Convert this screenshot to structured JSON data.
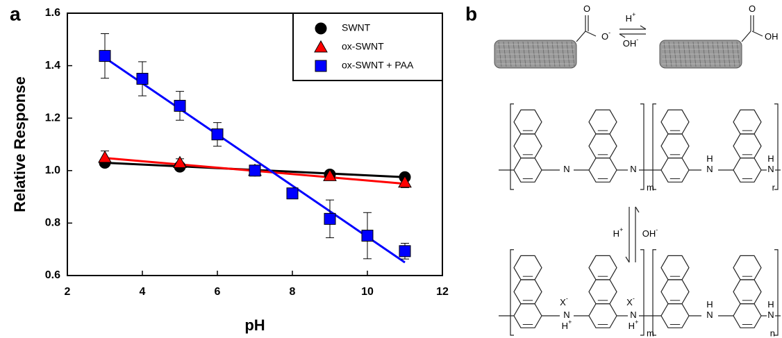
{
  "chart_data": {
    "type": "scatter",
    "panel_label": "a",
    "x_label": "pH",
    "y_label": "Relative Response",
    "xlim": [
      2,
      12
    ],
    "xticks": [
      2,
      4,
      6,
      8,
      10,
      12
    ],
    "ylim": [
      0.6,
      1.6
    ],
    "yticks": [
      0.6,
      0.8,
      {
        "value": 1.0,
        "label": "1.0"
      },
      1.2,
      1.4,
      1.6
    ],
    "legend": "upper right",
    "series": [
      {
        "name": "SWNT",
        "color": "#000000",
        "marker": "circle",
        "x": [
          3,
          5,
          7,
          9,
          11
        ],
        "values": [
          1.03,
          1.015,
          1.0,
          0.985,
          0.975
        ],
        "fit": {
          "x": [
            3,
            11
          ],
          "y": [
            1.03,
            0.975
          ]
        }
      },
      {
        "name": "ox-SWNT",
        "color": "#ff0000",
        "marker": "triangle",
        "x": [
          3,
          5,
          7,
          9,
          11
        ],
        "values": [
          1.05,
          1.03,
          1.0,
          0.98,
          0.955
        ],
        "errors": [
          0.025,
          0.015,
          0.01,
          0.015,
          0.02
        ],
        "fit": {
          "x": [
            3,
            11
          ],
          "y": [
            1.048,
            0.95
          ]
        }
      },
      {
        "name": "ox-SWNT + PAA",
        "color": "#0000ff",
        "marker": "square",
        "x": [
          3,
          4,
          5,
          6,
          7,
          8,
          9,
          10,
          11
        ],
        "values": [
          1.437,
          1.35,
          1.247,
          1.138,
          1.0,
          0.913,
          0.816,
          0.752,
          0.693
        ],
        "errors": [
          0.085,
          0.065,
          0.055,
          0.045,
          0.02,
          0.02,
          0.072,
          0.088,
          0.03
        ],
        "fit": {
          "x": [
            3,
            11
          ],
          "y": [
            1.43,
            0.65
          ]
        }
      }
    ]
  },
  "figure_b": {
    "panel_label": "b",
    "equilibrium_1": {
      "carboxylate": [
        {
          "text": "O"
        },
        {
          "text": "O",
          "sup": "-"
        }
      ],
      "acid": [
        {
          "text": "O"
        },
        {
          "text": "OH"
        }
      ],
      "forward": {
        "text": "H",
        "sup": "+"
      },
      "backward": {
        "text": "OH",
        "sup": "-"
      }
    },
    "polymer_1": {
      "atoms": [
        {
          "text": "N"
        },
        {
          "text": "N"
        },
        {
          "text": "H"
        },
        {
          "text": "N"
        },
        {
          "text": "H"
        },
        {
          "text": "N"
        }
      ],
      "subscripts": [
        "m",
        "r"
      ]
    },
    "equilibrium_2": {
      "forward": {
        "text": "H",
        "sup": "+"
      },
      "backward": {
        "text": "OH",
        "sup": "-"
      }
    },
    "polymer_2": {
      "atoms": [
        {
          "text": "X",
          "sup": "-"
        },
        {
          "text": "X",
          "sup": "-"
        },
        {
          "text": "N"
        },
        {
          "text": "H",
          "sup": "+"
        },
        {
          "text": "N"
        },
        {
          "text": "H",
          "sup": "+"
        },
        {
          "text": "H"
        },
        {
          "text": "N"
        },
        {
          "text": "H"
        },
        {
          "text": "N"
        }
      ],
      "subscripts": [
        "m",
        "n"
      ]
    }
  }
}
